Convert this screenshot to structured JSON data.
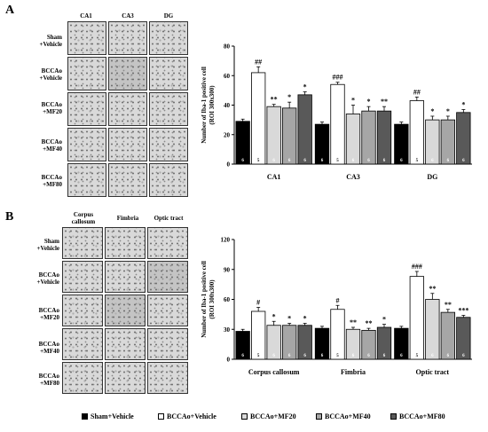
{
  "panel_a": {
    "letter": "A",
    "columns": [
      "CA1",
      "CA3",
      "DG"
    ],
    "rows": [
      [
        "Sham",
        "+Vehicle"
      ],
      [
        "BCCAo",
        "+Vehicle"
      ],
      [
        "BCCAo",
        "+MF20"
      ],
      [
        "BCCAo",
        "+MF40"
      ],
      [
        "BCCAo",
        "+MF80"
      ]
    ]
  },
  "panel_b": {
    "letter": "B",
    "columns": [
      [
        "Corpus",
        "callosum"
      ],
      [
        "Fimbria"
      ],
      [
        "Optic tract"
      ]
    ],
    "rows": [
      [
        "Sham",
        "+Vehicle"
      ],
      [
        "BCCAo",
        "+Vehicle"
      ],
      [
        "BCCAo",
        "+MF20"
      ],
      [
        "BCCAo",
        "+MF40"
      ],
      [
        "BCCAo",
        "+MF80"
      ]
    ]
  },
  "legend": [
    "Sham+Vehicle",
    "BCCAo+Vehicle",
    "BCCAo+MF20",
    "BCCAo+MF40",
    "BCCAo+MF80"
  ],
  "colors": [
    "#000000",
    "#ffffff",
    "#d9d9d9",
    "#a6a6a6",
    "#595959"
  ],
  "chart_data": [
    {
      "type": "bar",
      "ylabel": [
        "Number of Iba-1 positive cell",
        "(ROI 300x300)"
      ],
      "ylim": [
        0,
        80
      ],
      "yticks": [
        0,
        20,
        40,
        60,
        80
      ],
      "categories": [
        "CA1",
        "CA3",
        "DG"
      ],
      "series": [
        {
          "name": "Sham+Vehicle",
          "values": [
            29,
            27,
            27
          ],
          "errors": [
            1.5,
            1.5,
            1.5
          ],
          "n": [
            "6",
            "6",
            "6"
          ],
          "sig": [
            "",
            "",
            ""
          ]
        },
        {
          "name": "BCCAo+Vehicle",
          "values": [
            62,
            54,
            43
          ],
          "errors": [
            4,
            1.5,
            2.5
          ],
          "n": [
            "5",
            "5",
            "5"
          ],
          "sig": [
            "##",
            "###",
            "##"
          ]
        },
        {
          "name": "BCCAo+MF20",
          "values": [
            39,
            34,
            30
          ],
          "errors": [
            1.5,
            6,
            2.5
          ],
          "n": [
            "6",
            "6",
            "6"
          ],
          "sig": [
            "**",
            "*",
            "*"
          ]
        },
        {
          "name": "BCCAo+MF40",
          "values": [
            38,
            36,
            30
          ],
          "errors": [
            4,
            3,
            2.5
          ],
          "n": [
            "6",
            "6",
            "6"
          ],
          "sig": [
            "*",
            "*",
            "*"
          ]
        },
        {
          "name": "BCCAo+MF80",
          "values": [
            47,
            36,
            35
          ],
          "errors": [
            2,
            3,
            2
          ],
          "n": [
            "6",
            "6",
            "6"
          ],
          "sig": [
            "*",
            "**",
            "*"
          ]
        }
      ]
    },
    {
      "type": "bar",
      "ylabel": [
        "Number of Iba-1 positive cell",
        "(ROI 300x300)"
      ],
      "ylim": [
        0,
        120
      ],
      "yticks": [
        0,
        30,
        60,
        90,
        120
      ],
      "categories": [
        "Corpus callosum",
        "Fimbria",
        "Optic tract"
      ],
      "series": [
        {
          "name": "Sham+Vehicle",
          "values": [
            28,
            31,
            31
          ],
          "errors": [
            2,
            2,
            2
          ],
          "n": [
            "6",
            "6",
            "6"
          ],
          "sig": [
            "",
            "",
            ""
          ]
        },
        {
          "name": "BCCAo+Vehicle",
          "values": [
            48,
            50,
            83
          ],
          "errors": [
            4,
            4,
            5
          ],
          "n": [
            "5",
            "5",
            "5"
          ],
          "sig": [
            "#",
            "#",
            "###"
          ]
        },
        {
          "name": "BCCAo+MF20",
          "values": [
            34,
            30,
            60
          ],
          "errors": [
            4,
            2,
            6
          ],
          "n": [
            "6",
            "6",
            "6"
          ],
          "sig": [
            "*",
            "**",
            "**"
          ]
        },
        {
          "name": "BCCAo+MF40",
          "values": [
            34,
            29,
            47
          ],
          "errors": [
            2,
            2,
            3
          ],
          "n": [
            "6",
            "6",
            "6"
          ],
          "sig": [
            "*",
            "**",
            "**"
          ]
        },
        {
          "name": "BCCAo+MF80",
          "values": [
            34,
            32,
            42
          ],
          "errors": [
            2,
            3,
            2
          ],
          "n": [
            "6",
            "6",
            "6"
          ],
          "sig": [
            "*",
            "*",
            "***"
          ]
        }
      ]
    }
  ]
}
